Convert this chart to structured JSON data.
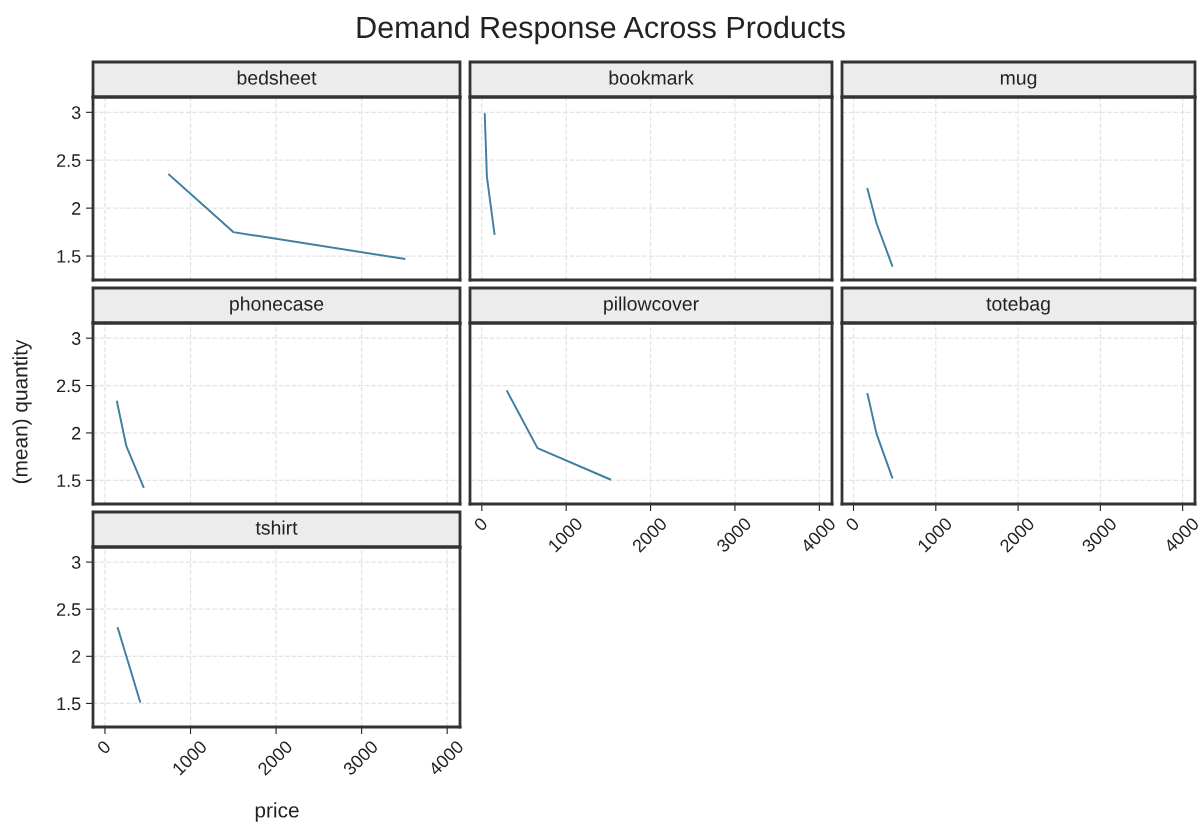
{
  "chart_data": [
    {
      "type": "line",
      "title": "bedsheet",
      "x": [
        750,
        1500,
        3500
      ],
      "values": [
        2.35,
        1.75,
        1.47
      ],
      "color": "#3f7f9f",
      "xlim": [
        -140,
        4150
      ],
      "ylim": [
        1.25,
        3.16
      ],
      "xticks": [
        0,
        1000,
        2000,
        3000,
        4000
      ],
      "yticks": [
        1.5,
        2,
        2.5,
        3
      ],
      "grid": true,
      "line_style": "solid",
      "tick_labels": "y"
    },
    {
      "type": "line",
      "title": "bookmark",
      "x": [
        35,
        60,
        150
      ],
      "values": [
        2.98,
        2.33,
        1.73
      ],
      "color": "#3f7f9f",
      "xlim": [
        -140,
        4150
      ],
      "ylim": [
        1.25,
        3.16
      ],
      "xticks": [
        0,
        1000,
        2000,
        3000,
        4000
      ],
      "yticks": [
        1.5,
        2,
        2.5,
        3
      ],
      "grid": true,
      "line_style": "solid",
      "tick_labels": false
    },
    {
      "type": "line",
      "title": "mug",
      "x": [
        170,
        280,
        470
      ],
      "values": [
        2.2,
        1.84,
        1.4
      ],
      "color": "#3f7f9f",
      "xlim": [
        -140,
        4150
      ],
      "ylim": [
        1.25,
        3.16
      ],
      "xticks": [
        0,
        1000,
        2000,
        3000,
        4000
      ],
      "yticks": [
        1.5,
        2,
        2.5,
        3
      ],
      "grid": true,
      "line_style": "solid",
      "tick_labels": false
    },
    {
      "type": "line",
      "title": "phonecase",
      "x": [
        140,
        250,
        450
      ],
      "values": [
        2.33,
        1.86,
        1.43
      ],
      "color": "#3f7f9f",
      "xlim": [
        -140,
        4150
      ],
      "ylim": [
        1.25,
        3.16
      ],
      "xticks": [
        0,
        1000,
        2000,
        3000,
        4000
      ],
      "yticks": [
        1.5,
        2,
        2.5,
        3
      ],
      "grid": true,
      "line_style": "solid",
      "tick_labels": "y"
    },
    {
      "type": "line",
      "title": "pillowcover",
      "x": [
        300,
        660,
        1520
      ],
      "values": [
        2.44,
        1.84,
        1.51
      ],
      "color": "#3f7f9f",
      "xlim": [
        -140,
        4150
      ],
      "ylim": [
        1.25,
        3.16
      ],
      "xticks": [
        0,
        1000,
        2000,
        3000,
        4000
      ],
      "yticks": [
        1.5,
        2,
        2.5,
        3
      ],
      "grid": true,
      "line_style": "solid",
      "tick_labels": "x"
    },
    {
      "type": "line",
      "title": "totebag",
      "x": [
        170,
        280,
        470
      ],
      "values": [
        2.41,
        1.99,
        1.53
      ],
      "color": "#3f7f9f",
      "xlim": [
        -140,
        4150
      ],
      "ylim": [
        1.25,
        3.16
      ],
      "xticks": [
        0,
        1000,
        2000,
        3000,
        4000
      ],
      "yticks": [
        1.5,
        2,
        2.5,
        3
      ],
      "grid": true,
      "line_style": "solid",
      "tick_labels": "x"
    },
    {
      "type": "line",
      "title": "tshirt",
      "x": [
        150,
        250,
        410
      ],
      "values": [
        2.3,
        2.0,
        1.52
      ],
      "color": "#3f7f9f",
      "xlim": [
        -140,
        4150
      ],
      "ylim": [
        1.25,
        3.16
      ],
      "xticks": [
        0,
        1000,
        2000,
        3000,
        4000
      ],
      "yticks": [
        1.5,
        2,
        2.5,
        3
      ],
      "grid": true,
      "line_style": "solid"
    },
    {
      "type": "other",
      "title": "Demand Response Across Products",
      "xlabel": "price",
      "ylabel": "(mean) quantity"
    }
  ]
}
